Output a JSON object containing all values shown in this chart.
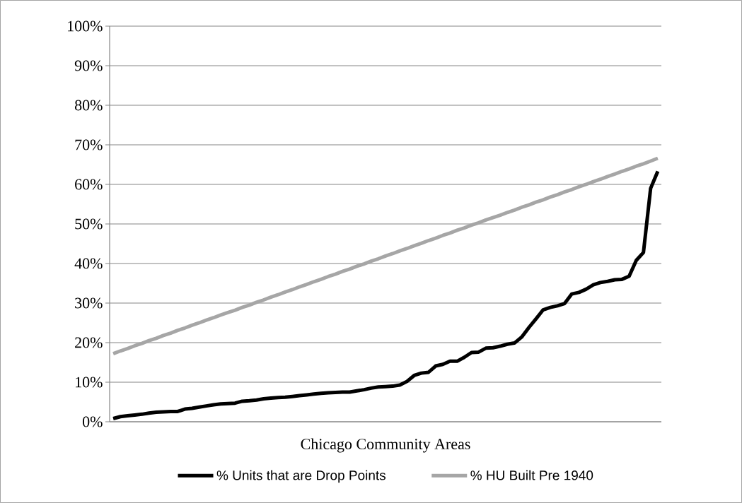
{
  "chart_data": {
    "type": "line",
    "xlabel": "Chicago Community Areas",
    "categories": [
      null,
      null,
      null,
      null,
      null,
      null,
      null,
      null,
      null,
      null,
      null,
      null,
      null,
      null,
      null,
      null,
      null,
      null,
      null,
      null,
      null,
      null,
      null,
      null,
      null,
      null,
      null,
      null,
      null,
      null,
      null,
      null,
      null,
      null,
      null,
      null,
      null,
      null,
      null,
      null,
      null,
      null,
      null,
      null,
      null,
      null,
      null,
      null,
      null,
      null,
      null,
      null,
      null,
      null,
      null,
      null,
      null,
      null,
      null,
      null,
      null,
      null,
      null,
      null,
      null,
      null,
      null,
      null,
      null,
      null,
      null,
      null,
      null,
      null,
      null,
      null,
      null
    ],
    "ylim": [
      0,
      100
    ],
    "yticks": [
      {
        "value": 0,
        "label": "0%"
      },
      {
        "value": 10,
        "label": "10%"
      },
      {
        "value": 20,
        "label": "20%"
      },
      {
        "value": 30,
        "label": "30%"
      },
      {
        "value": 40,
        "label": "40%"
      },
      {
        "value": 50,
        "label": "50%"
      },
      {
        "value": 60,
        "label": "60%"
      },
      {
        "value": 70,
        "label": "70%"
      },
      {
        "value": 80,
        "label": "80%"
      },
      {
        "value": 90,
        "label": "90%"
      },
      {
        "value": 100,
        "label": "100%"
      }
    ],
    "grid": "y",
    "legend": "bottom",
    "marker": "none",
    "line_style": "solid",
    "series": [
      {
        "name": "% Units that are Drop Points",
        "color": "#000000",
        "values": [
          0.8,
          1.3,
          1.5,
          1.7,
          1.9,
          2.2,
          2.4,
          2.5,
          2.6,
          2.6,
          3.2,
          3.4,
          3.7,
          4.0,
          4.3,
          4.5,
          4.6,
          4.7,
          5.2,
          5.3,
          5.5,
          5.8,
          6.0,
          6.1,
          6.2,
          6.4,
          6.6,
          6.8,
          7.0,
          7.2,
          7.3,
          7.4,
          7.5,
          7.5,
          7.8,
          8.1,
          8.5,
          8.8,
          8.9,
          9.0,
          9.3,
          10.2,
          11.7,
          12.3,
          12.5,
          14.1,
          14.5,
          15.3,
          15.3,
          16.3,
          17.5,
          17.6,
          18.6,
          18.7,
          19.1,
          19.6,
          19.9,
          21.4,
          23.8,
          26.0,
          28.3,
          28.9,
          29.3,
          29.9,
          32.3,
          32.7,
          33.5,
          34.6,
          35.2,
          35.5,
          35.9,
          36.0,
          36.8,
          40.8,
          42.8,
          59,
          63.3
        ]
      },
      {
        "name": "% HU Built Pre 1940",
        "color": "#a6a6a6",
        "values": [
          17.2,
          17.9,
          18.5,
          19.2,
          19.8,
          20.5,
          21.1,
          21.8,
          22.4,
          23.1,
          23.7,
          24.4,
          25.0,
          25.7,
          26.3,
          27.0,
          27.6,
          28.2,
          28.9,
          29.5,
          30.2,
          30.8,
          31.5,
          32.1,
          32.8,
          33.4,
          34.1,
          34.7,
          35.4,
          36.0,
          36.7,
          37.3,
          38.0,
          38.6,
          39.3,
          39.9,
          40.6,
          41.2,
          41.9,
          42.5,
          43.2,
          43.8,
          44.5,
          45.1,
          45.8,
          46.4,
          47.1,
          47.7,
          48.4,
          49.0,
          49.7,
          50.3,
          51.0,
          51.6,
          52.2,
          52.9,
          53.5,
          54.2,
          54.8,
          55.5,
          56.1,
          56.8,
          57.4,
          58.1,
          58.7,
          59.4,
          60.0,
          60.7,
          61.3,
          62.0,
          62.6,
          63.3,
          63.9,
          64.6,
          65.2,
          65.9,
          66.6
        ]
      }
    ]
  }
}
